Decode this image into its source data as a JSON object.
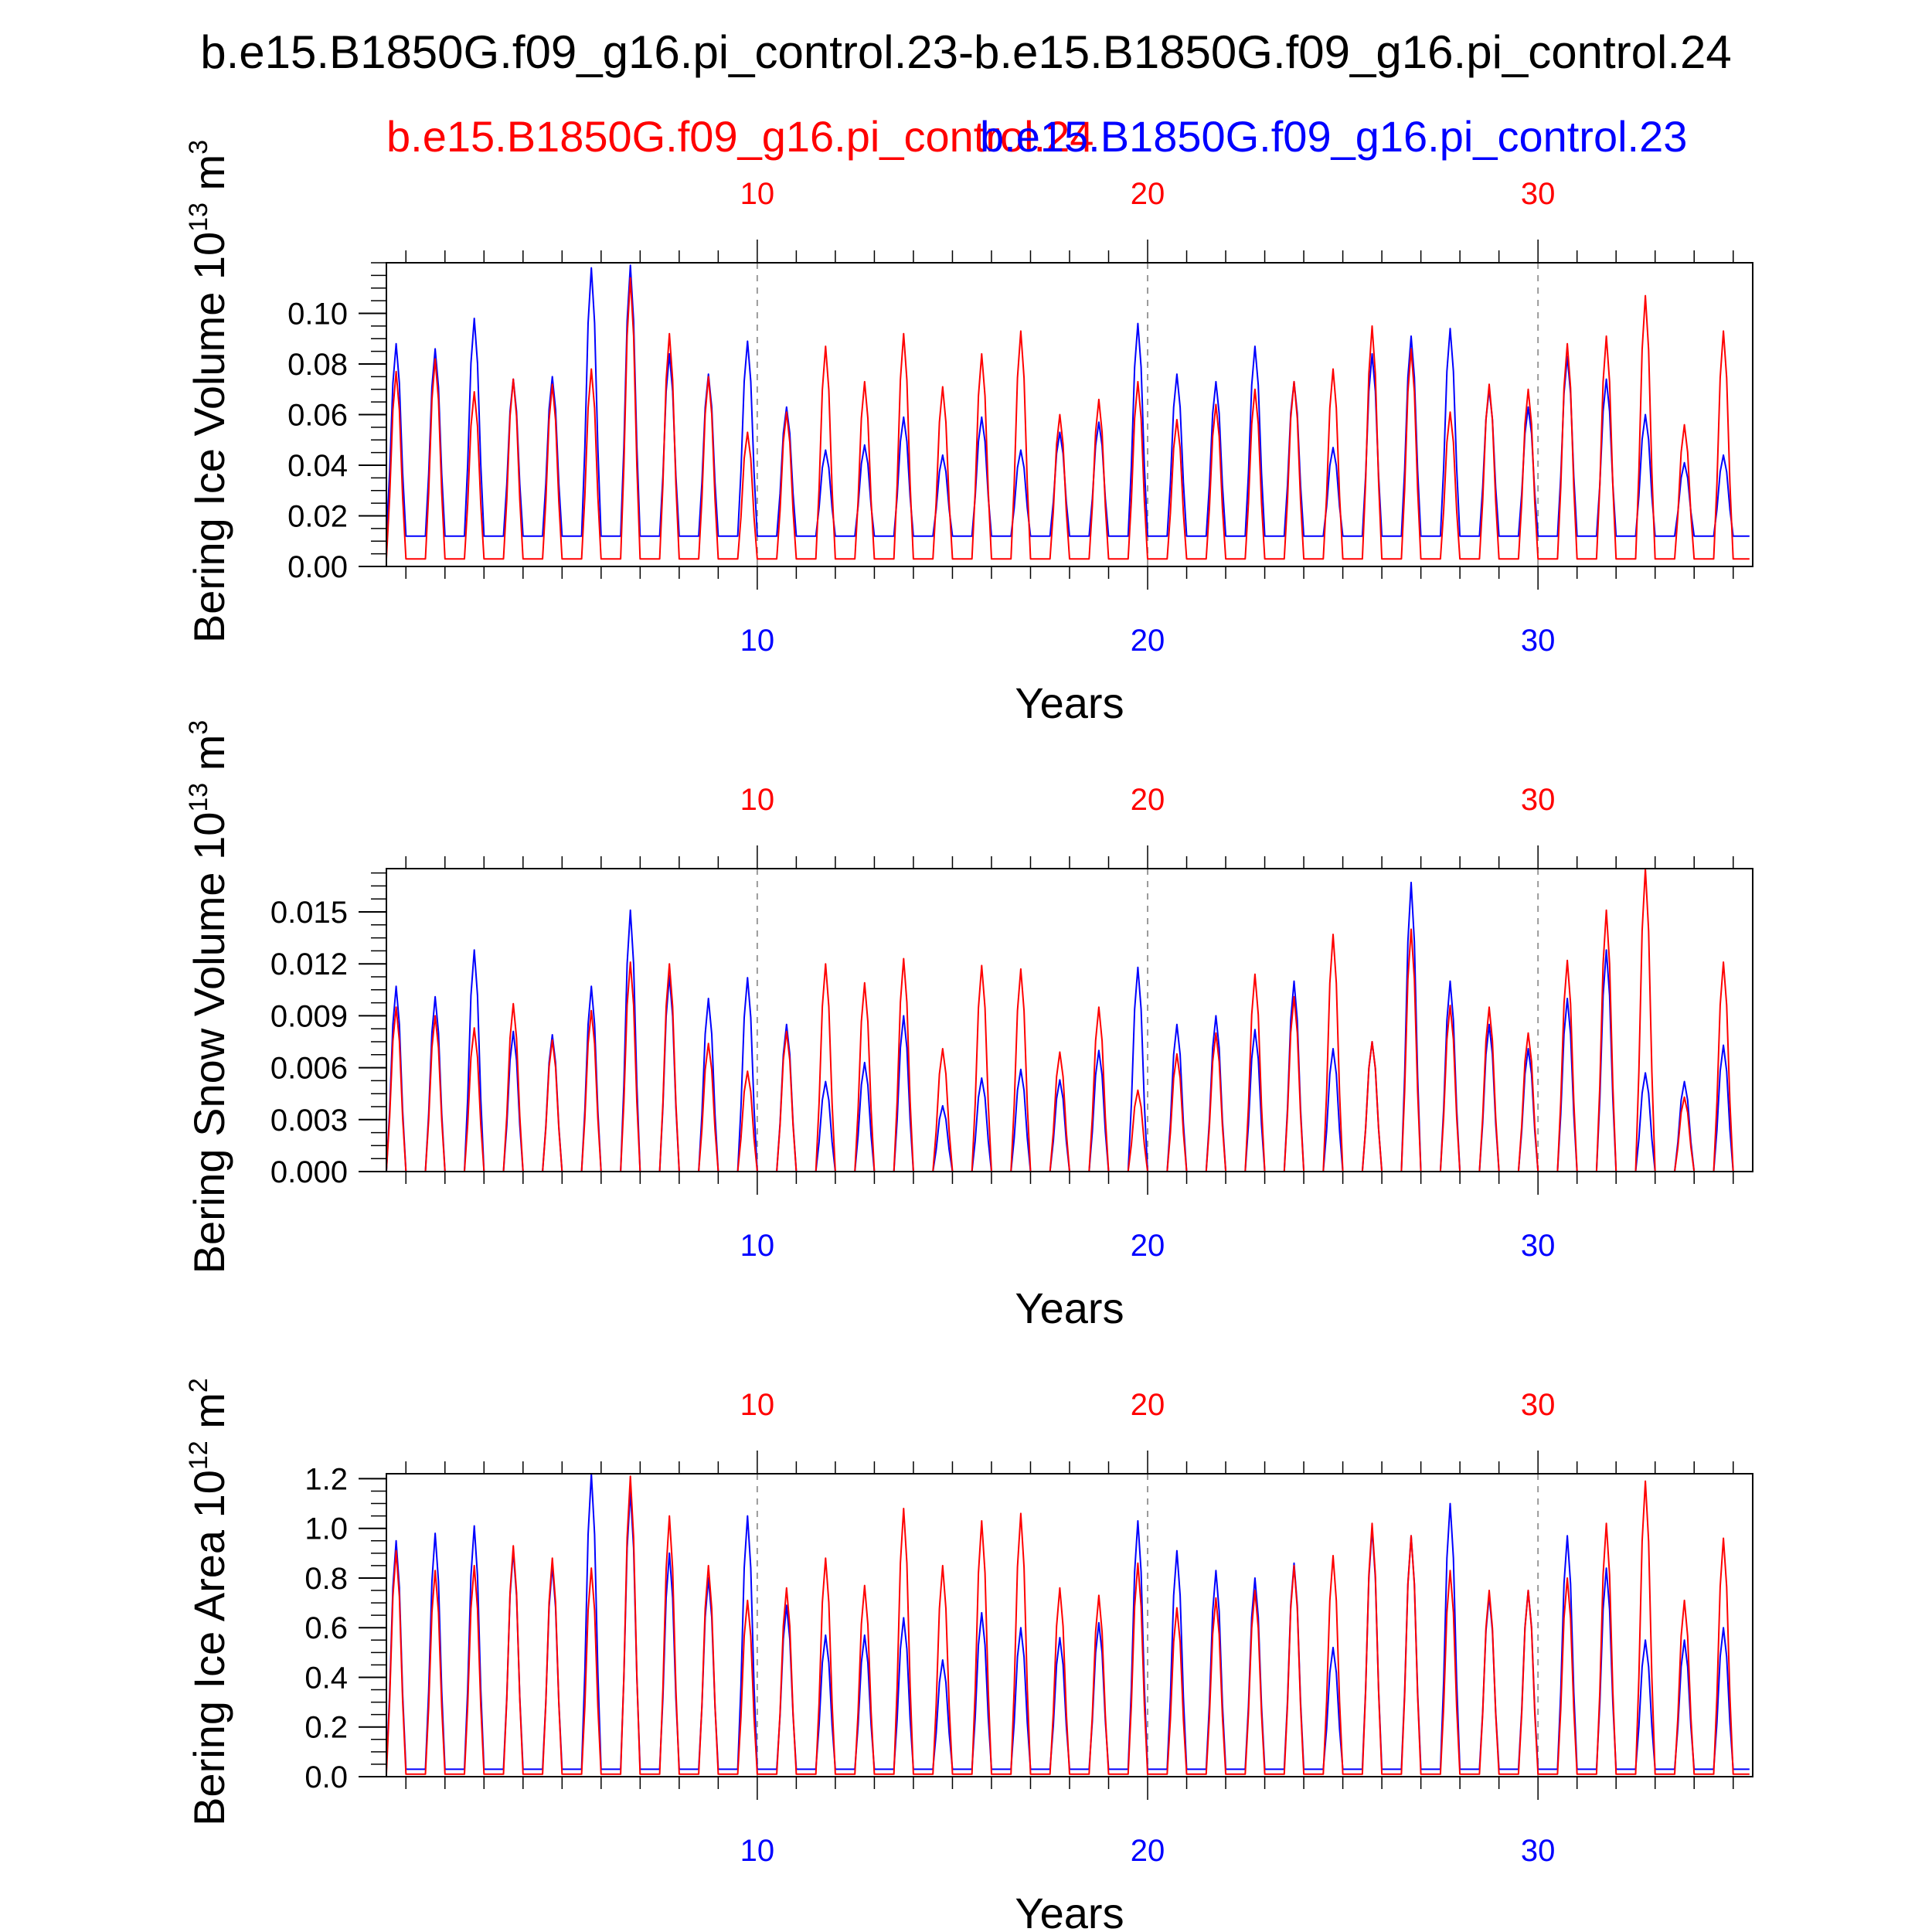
{
  "title": "b.e15.B1850G.f09_g16.pi_control.23-b.e15.B1850G.f09_g16.pi_control.24",
  "legend": {
    "red_label": "b.e15.B1850G.f09_g16.pi_control.24",
    "blue_label": "b.e15.B1850G.f09_g16.pi_control.23"
  },
  "colors": {
    "red": "#ff0000",
    "blue": "#0000ff",
    "axis": "#000000",
    "grid": "#9a9a9a"
  },
  "chart_data": [
    {
      "type": "line",
      "ylabel_main": "Bering Ice Volume 10",
      "ylabel_exp": "13",
      "ylabel_unit": " m",
      "ylabel_unit_exp": "3",
      "xlabel": "Years",
      "xlim": [
        0.5,
        35.5
      ],
      "ylim": [
        0,
        0.12
      ],
      "yticks": [
        "0.00",
        "0.02",
        "0.04",
        "0.06",
        "0.08",
        "0.10"
      ],
      "ytick_values": [
        0,
        0.02,
        0.04,
        0.06,
        0.08,
        0.1
      ],
      "xticks": [
        "10",
        "20",
        "30"
      ],
      "xtick_values": [
        10,
        20,
        30
      ],
      "yminor_step": 0.005,
      "series": [
        {
          "name": "b.e15.B1850G.f09_g16.pi_control.23",
          "color": "#0000ff",
          "winter_min": 0.012,
          "peaks": [
            0.088,
            0.086,
            0.098,
            0.074,
            0.075,
            0.118,
            0.119,
            0.084,
            0.076,
            0.089,
            0.063,
            0.046,
            0.048,
            0.059,
            0.044,
            0.059,
            0.046,
            0.053,
            0.057,
            0.096,
            0.076,
            0.073,
            0.087,
            0.073,
            0.047,
            0.084,
            0.091,
            0.094,
            0.07,
            0.063,
            0.083,
            0.074,
            0.06,
            0.041,
            0.044
          ]
        },
        {
          "name": "b.e15.B1850G.f09_g16.pi_control.24",
          "color": "#ff0000",
          "winter_min": 0.003,
          "peaks": [
            0.077,
            0.082,
            0.069,
            0.074,
            0.072,
            0.078,
            0.114,
            0.092,
            0.075,
            0.053,
            0.061,
            0.087,
            0.073,
            0.092,
            0.071,
            0.084,
            0.093,
            0.06,
            0.066,
            0.073,
            0.058,
            0.064,
            0.07,
            0.073,
            0.078,
            0.095,
            0.086,
            0.061,
            0.072,
            0.07,
            0.088,
            0.091,
            0.107,
            0.056,
            0.093
          ]
        }
      ]
    },
    {
      "type": "line",
      "ylabel_main": "Bering Snow Volume 10",
      "ylabel_exp": "13",
      "ylabel_unit": " m",
      "ylabel_unit_exp": "3",
      "xlabel": "Years",
      "xlim": [
        0.5,
        35.5
      ],
      "ylim": [
        0,
        0.0175
      ],
      "yticks": [
        "0.000",
        "0.003",
        "0.006",
        "0.009",
        "0.012",
        "0.015"
      ],
      "ytick_values": [
        0,
        0.003,
        0.006,
        0.009,
        0.012,
        0.015
      ],
      "xticks": [
        "10",
        "20",
        "30"
      ],
      "xtick_values": [
        10,
        20,
        30
      ],
      "yminor_step": 0.00075,
      "series": [
        {
          "name": "b.e15.B1850G.f09_g16.pi_control.23",
          "color": "#0000ff",
          "winter_min": 0.0,
          "peaks": [
            0.0107,
            0.0101,
            0.0128,
            0.0081,
            0.0079,
            0.0107,
            0.0151,
            0.0113,
            0.01,
            0.0112,
            0.0085,
            0.0052,
            0.0063,
            0.009,
            0.0038,
            0.0054,
            0.0059,
            0.0053,
            0.007,
            0.0118,
            0.0085,
            0.009,
            0.0082,
            0.011,
            0.0071,
            0.0075,
            0.0167,
            0.011,
            0.0085,
            0.0071,
            0.01,
            0.0128,
            0.0057,
            0.0052,
            0.0073
          ]
        },
        {
          "name": "b.e15.B1850G.f09_g16.pi_control.24",
          "color": "#ff0000",
          "winter_min": 0.0,
          "peaks": [
            0.0095,
            0.009,
            0.0083,
            0.0097,
            0.0076,
            0.0093,
            0.0121,
            0.012,
            0.0074,
            0.0058,
            0.0081,
            0.012,
            0.0109,
            0.0123,
            0.0071,
            0.0119,
            0.0117,
            0.0069,
            0.0095,
            0.0047,
            0.0068,
            0.008,
            0.0114,
            0.0101,
            0.0137,
            0.0075,
            0.014,
            0.0096,
            0.0095,
            0.008,
            0.0122,
            0.0151,
            0.0175,
            0.0043,
            0.0121
          ]
        }
      ]
    },
    {
      "type": "line",
      "ylabel_main": "Bering Ice Area 10",
      "ylabel_exp": "12",
      "ylabel_unit": " m",
      "ylabel_unit_exp": "2",
      "xlabel": "Years",
      "xlim": [
        0.5,
        35.5
      ],
      "ylim": [
        0,
        1.22
      ],
      "yticks": [
        "0.0",
        "0.2",
        "0.4",
        "0.6",
        "0.8",
        "1.0",
        "1.2"
      ],
      "ytick_values": [
        0,
        0.2,
        0.4,
        0.6,
        0.8,
        1.0,
        1.2
      ],
      "xticks": [
        "10",
        "20",
        "30"
      ],
      "xtick_values": [
        10,
        20,
        30
      ],
      "yminor_step": 0.05,
      "series": [
        {
          "name": "b.e15.B1850G.f09_g16.pi_control.23",
          "color": "#0000ff",
          "winter_min": 0.03,
          "peaks": [
            0.95,
            0.98,
            1.01,
            0.91,
            0.85,
            1.22,
            1.15,
            0.9,
            0.8,
            1.05,
            0.69,
            0.57,
            0.57,
            0.64,
            0.47,
            0.66,
            0.6,
            0.56,
            0.62,
            1.03,
            0.91,
            0.83,
            0.8,
            0.86,
            0.52,
            1.0,
            0.97,
            1.1,
            0.73,
            0.75,
            0.97,
            0.84,
            0.55,
            0.55,
            0.6
          ]
        },
        {
          "name": "b.e15.B1850G.f09_g16.pi_control.24",
          "color": "#ff0000",
          "winter_min": 0.01,
          "peaks": [
            0.91,
            0.83,
            0.85,
            0.93,
            0.88,
            0.84,
            1.21,
            1.05,
            0.85,
            0.71,
            0.76,
            0.88,
            0.77,
            1.08,
            0.85,
            1.03,
            1.06,
            0.76,
            0.73,
            0.86,
            0.68,
            0.72,
            0.75,
            0.85,
            0.89,
            1.02,
            0.97,
            0.83,
            0.75,
            0.75,
            0.8,
            1.02,
            1.19,
            0.71,
            0.96
          ]
        }
      ]
    }
  ]
}
